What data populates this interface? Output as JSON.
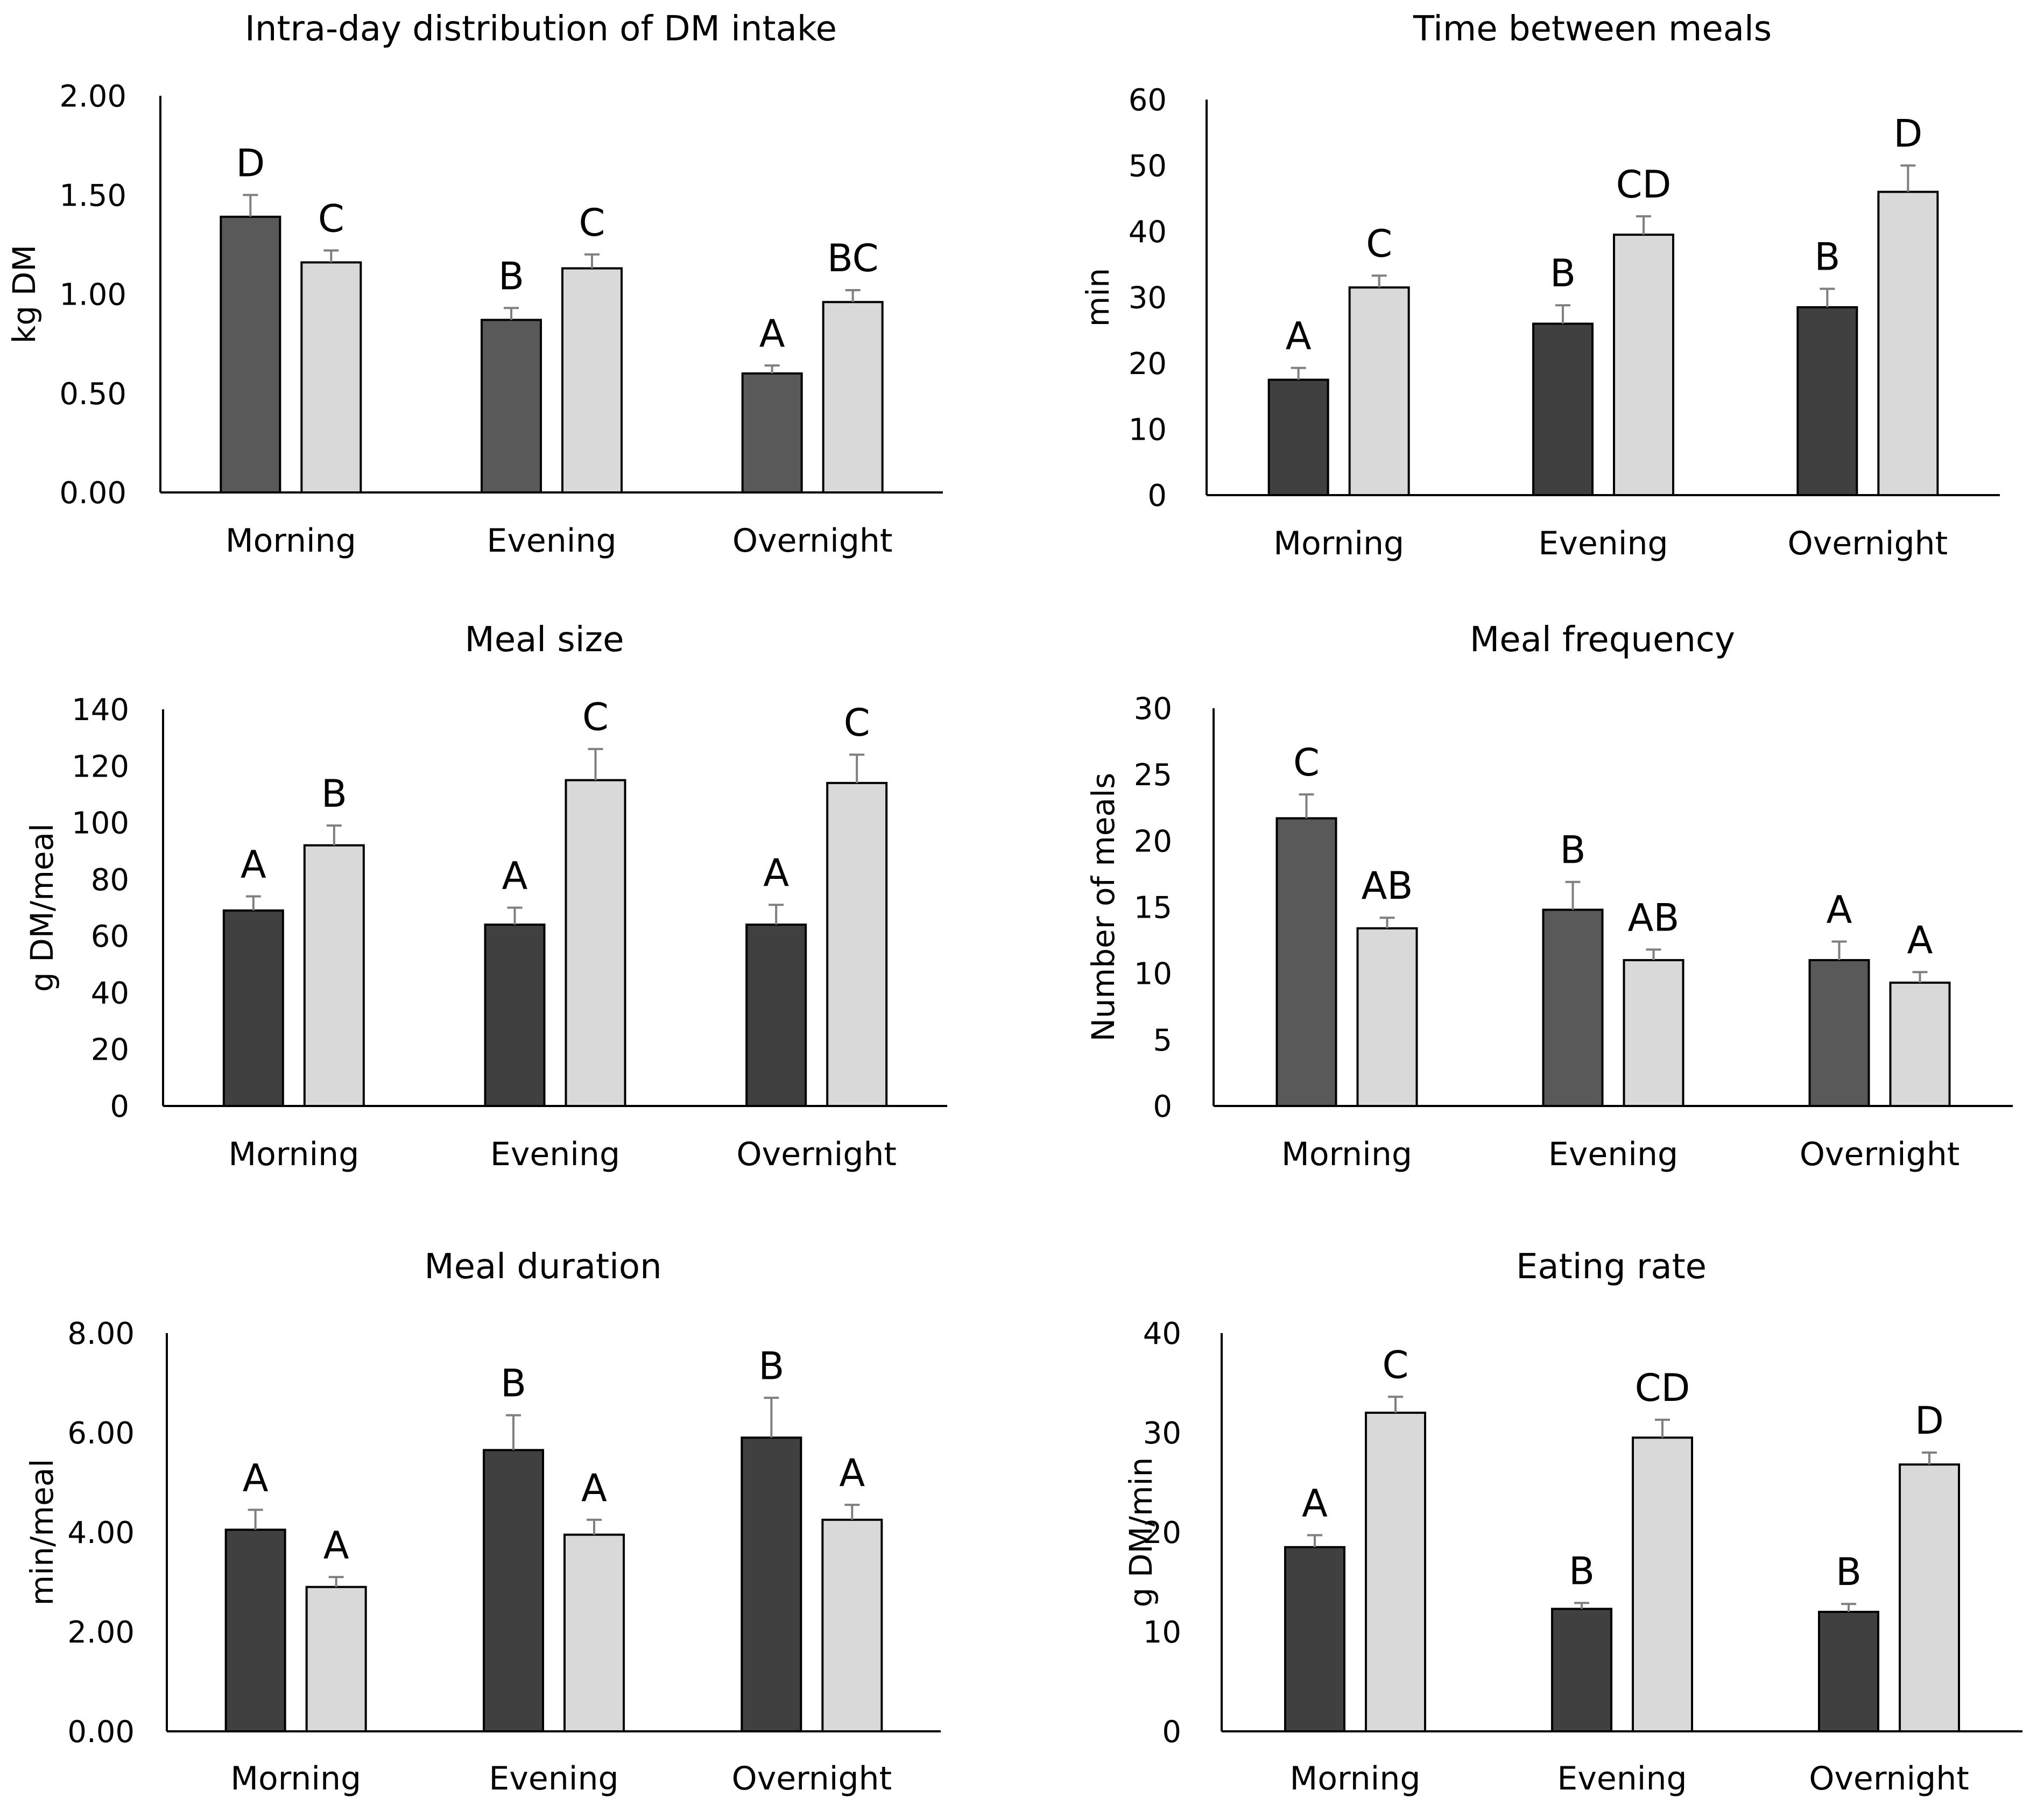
{
  "chart_data": [
    {
      "type": "bar",
      "title": "Intra-day distribution of DM intake",
      "ylabel": "kg DM",
      "xlabel": "",
      "categories": [
        "Morning",
        "Evening",
        "Overnight"
      ],
      "ylim": [
        0,
        2
      ],
      "yticks": [
        "0.00",
        "0.50",
        "1.00",
        "1.50",
        "2.00"
      ],
      "ytick_values": [
        0,
        0.5,
        1,
        1.5,
        2
      ],
      "series": [
        {
          "name": "dark",
          "color": "#595959",
          "values": [
            1.39,
            0.87,
            0.6
          ],
          "errors": [
            0.11,
            0.06,
            0.04
          ],
          "letters": [
            "D",
            "B",
            "A"
          ]
        },
        {
          "name": "light",
          "color": "#d9d9d9",
          "values": [
            1.16,
            1.13,
            0.96
          ],
          "errors": [
            0.06,
            0.07,
            0.06
          ],
          "letters": [
            "C",
            "C",
            "BC"
          ]
        }
      ]
    },
    {
      "type": "bar",
      "title": "Time between meals",
      "ylabel": "min",
      "xlabel": "",
      "categories": [
        "Morning",
        "Evening",
        "Overnight"
      ],
      "ylim": [
        0,
        60
      ],
      "yticks": [
        "0",
        "10",
        "20",
        "30",
        "40",
        "50",
        "60"
      ],
      "ytick_values": [
        0,
        10,
        20,
        30,
        40,
        50,
        60
      ],
      "series": [
        {
          "name": "dark",
          "color": "#404040",
          "values": [
            17.5,
            26,
            28.5
          ],
          "errors": [
            1.8,
            2.8,
            2.8
          ],
          "letters": [
            "A",
            "B",
            "B"
          ]
        },
        {
          "name": "light",
          "color": "#d9d9d9",
          "values": [
            31.5,
            39.5,
            46
          ],
          "errors": [
            1.8,
            2.8,
            4
          ],
          "letters": [
            "C",
            "CD",
            "D"
          ]
        }
      ]
    },
    {
      "type": "bar",
      "title": "Meal size",
      "ylabel": "g DM/meal",
      "xlabel": "",
      "categories": [
        "Morning",
        "Evening",
        "Overnight"
      ],
      "ylim": [
        0,
        140
      ],
      "yticks": [
        "0",
        "20",
        "40",
        "60",
        "80",
        "100",
        "120",
        "140"
      ],
      "ytick_values": [
        0,
        20,
        40,
        60,
        80,
        100,
        120,
        140
      ],
      "series": [
        {
          "name": "dark",
          "color": "#404040",
          "values": [
            69,
            64,
            64
          ],
          "errors": [
            5,
            6,
            7
          ],
          "letters": [
            "A",
            "A",
            "A"
          ]
        },
        {
          "name": "light",
          "color": "#d9d9d9",
          "values": [
            92,
            115,
            114
          ],
          "errors": [
            7,
            11,
            10
          ],
          "letters": [
            "B",
            "C",
            "C"
          ]
        }
      ]
    },
    {
      "type": "bar",
      "title": "Meal frequency",
      "ylabel": "Number of meals",
      "xlabel": "",
      "categories": [
        "Morning",
        "Evening",
        "Overnight"
      ],
      "ylim": [
        0,
        30
      ],
      "yticks": [
        "0",
        "5",
        "10",
        "15",
        "20",
        "25",
        "30"
      ],
      "ytick_values": [
        0,
        5,
        10,
        15,
        20,
        25,
        30
      ],
      "series": [
        {
          "name": "dark",
          "color": "#595959",
          "values": [
            21.7,
            14.8,
            11
          ],
          "errors": [
            1.8,
            2.1,
            1.4
          ],
          "letters": [
            "C",
            "B",
            "A"
          ]
        },
        {
          "name": "light",
          "color": "#d9d9d9",
          "values": [
            13.4,
            11,
            9.3
          ],
          "errors": [
            0.8,
            0.8,
            0.8
          ],
          "letters": [
            "AB",
            "AB",
            "A"
          ]
        }
      ]
    },
    {
      "type": "bar",
      "title": "Meal  duration",
      "ylabel": "min/meal",
      "xlabel": "",
      "categories": [
        "Morning",
        "Evening",
        "Overnight"
      ],
      "ylim": [
        0,
        8
      ],
      "yticks": [
        "0.00",
        "2.00",
        "4.00",
        "6.00",
        "8.00"
      ],
      "ytick_values": [
        0,
        2,
        4,
        6,
        8
      ],
      "series": [
        {
          "name": "dark",
          "color": "#404040",
          "values": [
            4.05,
            5.65,
            5.9
          ],
          "errors": [
            0.4,
            0.7,
            0.8
          ],
          "letters": [
            "A",
            "B",
            "B"
          ]
        },
        {
          "name": "light",
          "color": "#d9d9d9",
          "values": [
            2.9,
            3.95,
            4.25
          ],
          "errors": [
            0.2,
            0.3,
            0.3
          ],
          "letters": [
            "A",
            "A",
            "A"
          ]
        }
      ]
    },
    {
      "type": "bar",
      "title": "Eating rate",
      "ylabel": "g DM/min",
      "xlabel": "",
      "categories": [
        "Morning",
        "Evening",
        "Overnight"
      ],
      "ylim": [
        0,
        40
      ],
      "yticks": [
        "0",
        "10",
        "20",
        "30",
        "40"
      ],
      "ytick_values": [
        0,
        10,
        20,
        30,
        40
      ],
      "series": [
        {
          "name": "dark",
          "color": "#404040",
          "values": [
            18.5,
            12.3,
            12
          ],
          "errors": [
            1.2,
            0.6,
            0.8
          ],
          "letters": [
            "A",
            "B",
            "B"
          ]
        },
        {
          "name": "light",
          "color": "#d9d9d9",
          "values": [
            32,
            29.5,
            26.8
          ],
          "errors": [
            1.6,
            1.8,
            1.2
          ],
          "letters": [
            "C",
            "CD",
            "D"
          ]
        }
      ]
    }
  ]
}
